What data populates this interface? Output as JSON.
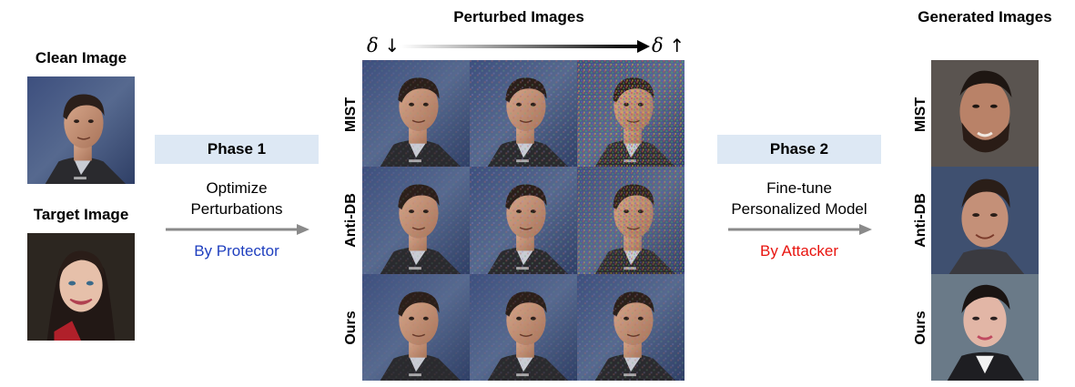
{
  "clean_image": {
    "title": "Clean Image"
  },
  "target_image": {
    "title": "Target Image"
  },
  "phase1": {
    "label": "Phase 1",
    "description_line1": "Optimize",
    "description_line2": "Perturbations",
    "byline": "By Protector",
    "byline_color": "#1f3fbf"
  },
  "perturbed": {
    "title": "Perturbed Images",
    "delta_left": "δ",
    "delta_left_arrow": "↓",
    "delta_right": "δ",
    "delta_right_arrow": "↑",
    "rows": [
      "MIST",
      "Anti-DB",
      "Ours"
    ]
  },
  "phase2": {
    "label": "Phase 2",
    "description_line1": "Fine-tune",
    "description_line2": "Personalized Model",
    "byline": "By Attacker",
    "byline_color": "#e8140f"
  },
  "generated": {
    "title": "Generated Images",
    "rows": [
      "MIST",
      "Anti-DB",
      "Ours"
    ]
  },
  "colors": {
    "phase_box": "#dde8f4",
    "arrow": "#8a8a8a"
  }
}
